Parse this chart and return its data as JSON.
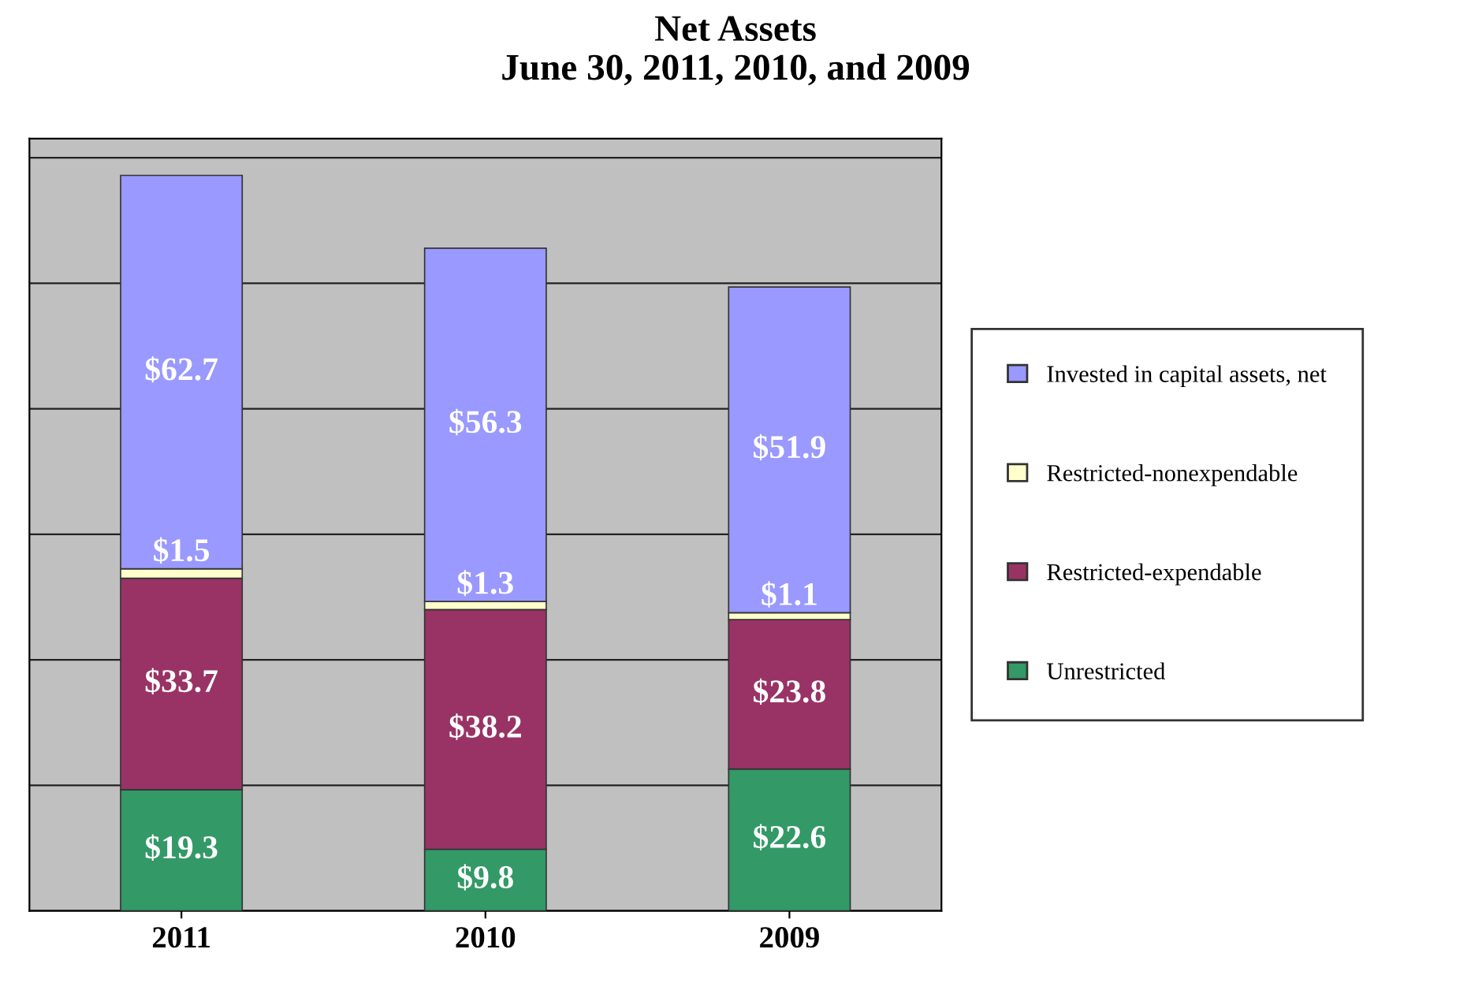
{
  "chart_data": {
    "type": "bar",
    "title": "Net Assets\nJune 30, 2011, 2010, and 2009",
    "categories": [
      "2011",
      "2010",
      "2009"
    ],
    "stacked": true,
    "grid": "y",
    "legend": "right",
    "tick_labels": "x",
    "series": [
      {
        "name": "Unrestricted",
        "color": "#339966",
        "values": [
          19.3,
          9.8,
          22.6
        ],
        "value_labels": [
          "$19.3",
          "$9.8",
          "$22.6"
        ]
      },
      {
        "name": "Restricted-expendable",
        "color": "#993366",
        "values": [
          33.7,
          38.2,
          23.8
        ],
        "value_labels": [
          "$33.7",
          "$38.2",
          "$23.8"
        ]
      },
      {
        "name": "Restricted-nonexpendable",
        "color": "#ffffcc",
        "values": [
          1.5,
          1.3,
          1.1
        ],
        "value_labels": [
          "$1.5",
          "$1.3",
          "$1.1"
        ]
      },
      {
        "name": "Invested in capital assets, net",
        "color": "#9999ff",
        "values": [
          62.7,
          56.3,
          51.9
        ],
        "value_labels": [
          "$62.7",
          "$56.3",
          "$51.9"
        ]
      }
    ]
  }
}
